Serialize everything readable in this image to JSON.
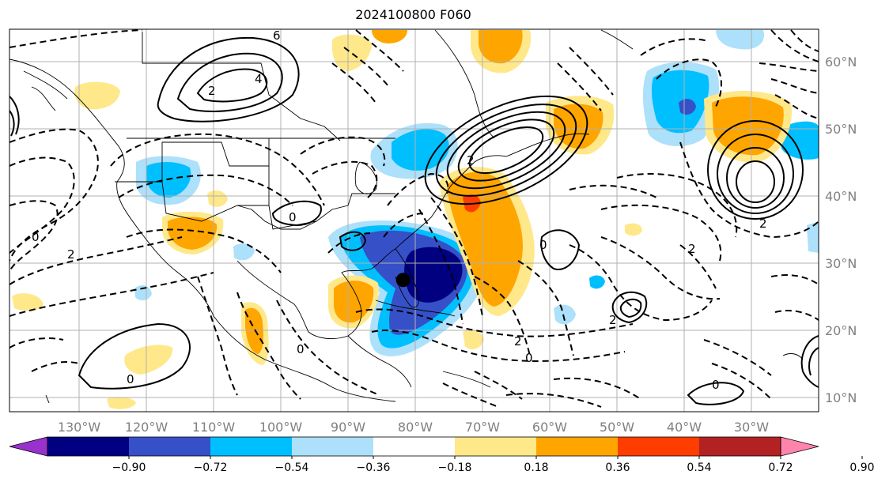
{
  "title": "2024100800 F060",
  "lon_ticks": [
    "130°W",
    "120°W",
    "110°W",
    "100°W",
    "90°W",
    "80°W",
    "70°W",
    "60°W",
    "50°W",
    "40°W",
    "30°W"
  ],
  "lat_ticks": [
    "60°N",
    "50°N",
    "40°N",
    "30°N",
    "20°N",
    "10°N"
  ],
  "colorbar": {
    "colors": [
      "#9932cc",
      "#000080",
      "#3650c8",
      "#00bfff",
      "#ade0fa",
      "#ffffff",
      "#ffe88a",
      "#ffa500",
      "#ff3d00",
      "#b22222",
      "#ff84ab"
    ],
    "labels": [
      "−0.90",
      "−0.72",
      "−0.54",
      "−0.36",
      "−0.18",
      "0.18",
      "0.36",
      "0.54",
      "0.72",
      "0.90"
    ]
  },
  "contour_labels": [
    "0",
    "2",
    "4",
    "6",
    "2",
    "0",
    "2",
    "0",
    "2",
    "0",
    "0",
    "2",
    "2",
    "0",
    "2",
    "0"
  ],
  "marker": {
    "lon": -81.8,
    "lat": 27.5
  }
}
